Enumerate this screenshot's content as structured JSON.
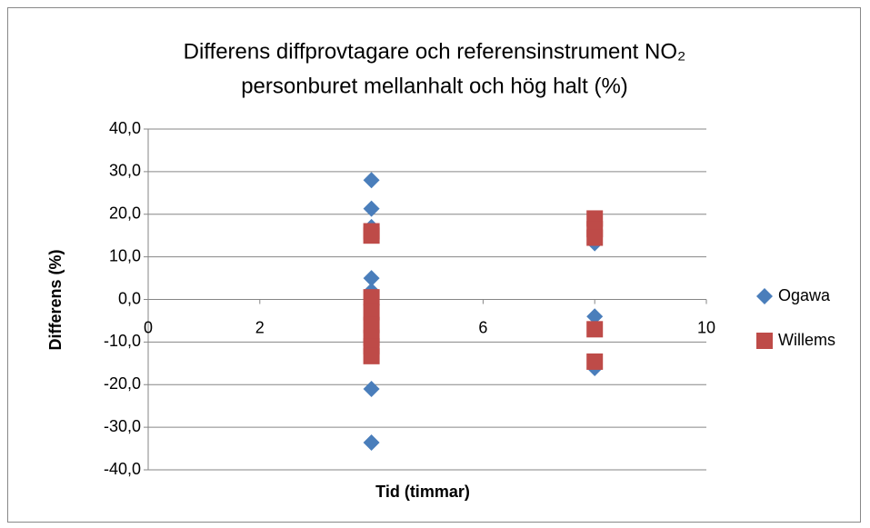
{
  "chart_data": {
    "type": "scatter",
    "title": [
      "Differens diffprovtagare och referensinstrument NO₂",
      "personburet mellanhalt och hög halt (%)"
    ],
    "x_label": "Tid (timmar)",
    "y_label": "Differens (%)",
    "xlim": [
      0,
      10
    ],
    "xticks": [
      0,
      2,
      4,
      6,
      8,
      10
    ],
    "ylim": [
      -40,
      40
    ],
    "yticks": [
      {
        "value": -40,
        "label": "-40,0"
      },
      {
        "value": -30,
        "label": "-30,0"
      },
      {
        "value": -20,
        "label": "-20,0"
      },
      {
        "value": -10,
        "label": "-10,0"
      },
      {
        "value": 0,
        "label": "0,0"
      },
      {
        "value": 10,
        "label": "10,0"
      },
      {
        "value": 20,
        "label": "20,0"
      },
      {
        "value": 30,
        "label": "30,0"
      },
      {
        "value": 40,
        "label": "40,0"
      }
    ],
    "grid": true,
    "legend": "right",
    "series": [
      {
        "name": "Ogawa",
        "color": "#4a7ebb",
        "marker": "diamond",
        "x": [
          4,
          4,
          4,
          4,
          4,
          4,
          4,
          8,
          8,
          8
        ],
        "values": [
          28,
          21.3,
          17,
          5,
          2,
          -21,
          -33.6,
          13.2,
          -4,
          -16.1
        ]
      },
      {
        "name": "Willems",
        "color": "#be4b48",
        "marker": "square",
        "x": [
          4,
          4,
          4,
          4,
          4,
          4,
          4,
          4,
          8,
          8,
          8,
          8,
          8
        ],
        "values": [
          16,
          15,
          0.5,
          -3,
          -6,
          -9,
          -11,
          -13.3,
          19,
          16.5,
          14.5,
          -7,
          -14.6
        ]
      }
    ]
  }
}
